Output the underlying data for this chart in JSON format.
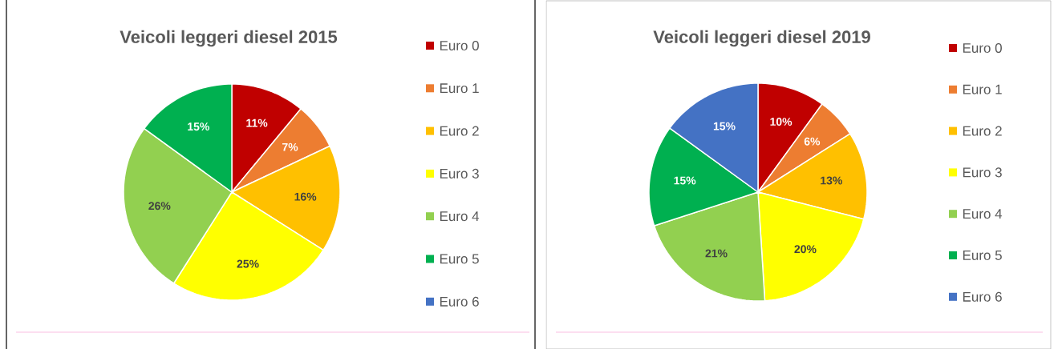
{
  "chart_data": [
    {
      "type": "pie",
      "title": "Veicoli leggeri  diesel 2015",
      "categories": [
        "Euro 0",
        "Euro 1",
        "Euro 2",
        "Euro 3",
        "Euro 4",
        "Euro 5",
        "Euro 6"
      ],
      "values": [
        11,
        7,
        16,
        25,
        26,
        15,
        0
      ],
      "colors": [
        "#c00000",
        "#ed7d31",
        "#ffc000",
        "#ffff00",
        "#92d050",
        "#00b050",
        "#4472c4"
      ],
      "value_labels": [
        "11%",
        "7%",
        "16%",
        "25%",
        "26%",
        "15%",
        null
      ],
      "legend": "right"
    },
    {
      "type": "pie",
      "title": "Veicoli leggeri diesel 2019",
      "categories": [
        "Euro 0",
        "Euro 1",
        "Euro 2",
        "Euro 3",
        "Euro 4",
        "Euro 5",
        "Euro 6"
      ],
      "values": [
        10,
        6,
        13,
        20,
        21,
        15,
        15
      ],
      "colors": [
        "#c00000",
        "#ed7d31",
        "#ffc000",
        "#ffff00",
        "#92d050",
        "#00b050",
        "#4472c4"
      ],
      "value_labels": [
        "10%",
        "6%",
        "13%",
        "20%",
        "21%",
        "15%",
        "15%"
      ],
      "legend": "right"
    }
  ]
}
